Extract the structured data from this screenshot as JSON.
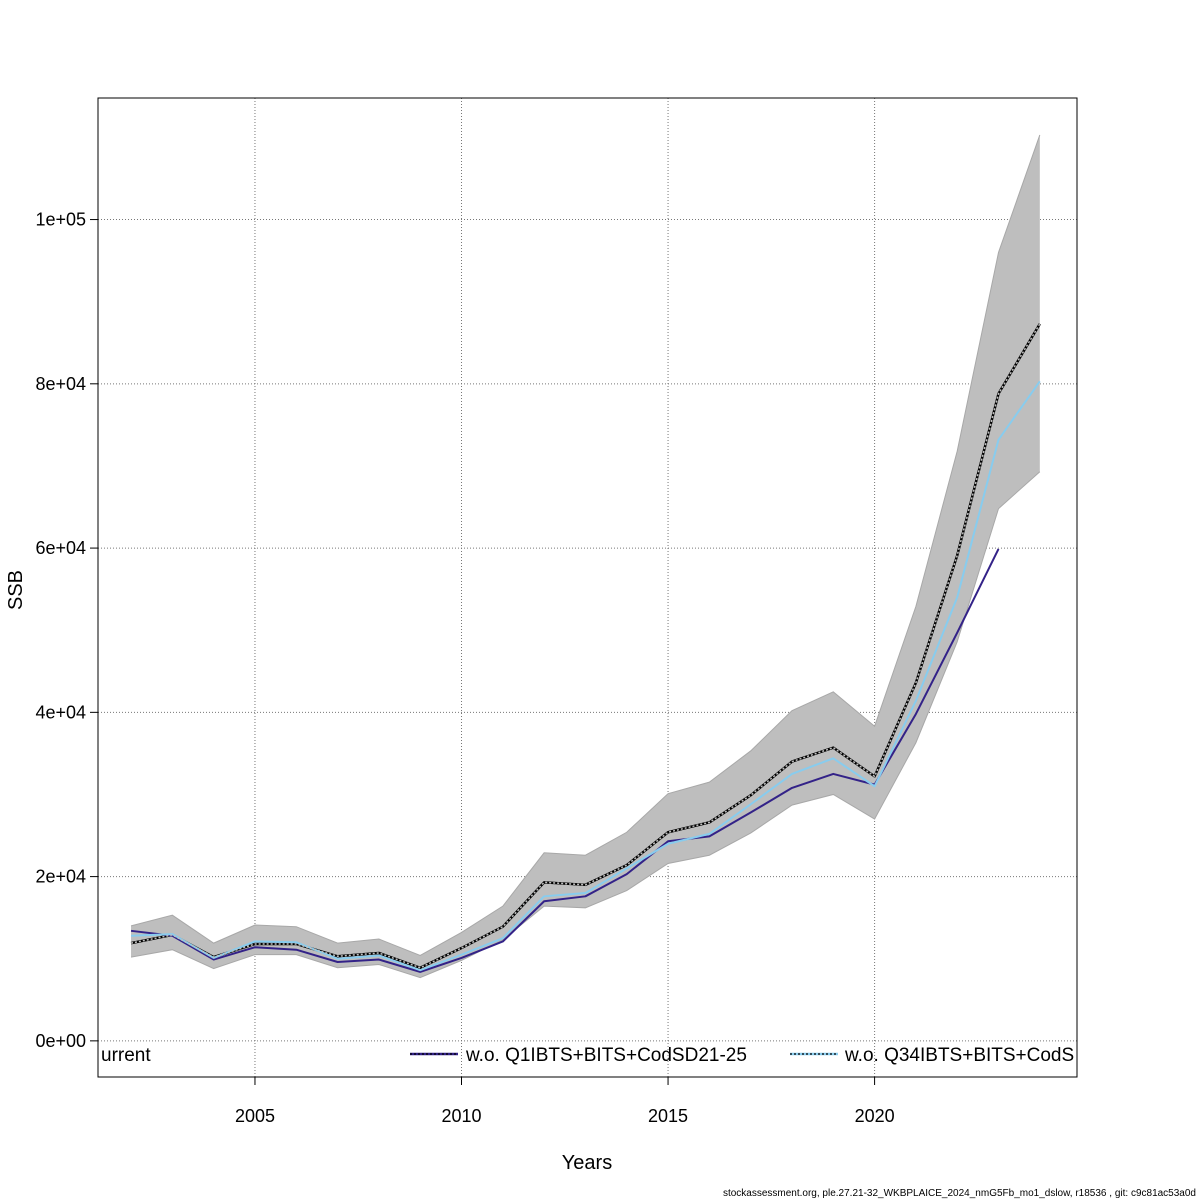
{
  "chart_data": {
    "type": "line",
    "xlabel": "Years",
    "ylabel": "SSB",
    "xlim": [
      2001.2,
      2024.9
    ],
    "ylim": [
      -4400,
      114800
    ],
    "x_ticks": [
      2005,
      2010,
      2015,
      2020
    ],
    "x_tick_labels": [
      "2005",
      "2010",
      "2015",
      "2020"
    ],
    "y_ticks": [
      0,
      20000,
      40000,
      60000,
      80000,
      100000
    ],
    "y_tick_labels": [
      "0e+00",
      "2e+04",
      "4e+04",
      "6e+04",
      "8e+04",
      "1e+05"
    ],
    "grid": true,
    "x": [
      2002,
      2003,
      2004,
      2005,
      2006,
      2007,
      2008,
      2009,
      2010,
      2011,
      2012,
      2013,
      2014,
      2015,
      2016,
      2017,
      2018,
      2019,
      2020,
      2021,
      2022,
      2023,
      2024
    ],
    "band": {
      "color": "#bebebe",
      "upper": [
        14000,
        15300,
        11900,
        14100,
        13900,
        11900,
        12400,
        10400,
        13200,
        16400,
        22900,
        22600,
        25400,
        30100,
        31500,
        35300,
        40200,
        42500,
        38300,
        52900,
        71800,
        96000,
        110300
      ],
      "lower": [
        10200,
        11100,
        8800,
        10500,
        10500,
        8900,
        9300,
        7700,
        9800,
        12300,
        16400,
        16200,
        18300,
        21600,
        22600,
        25300,
        28700,
        30000,
        27000,
        36300,
        48600,
        64800,
        69300
      ]
    },
    "series": [
      {
        "name": "",
        "color": "#000000",
        "style": "solid",
        "values": [
          11900,
          12900,
          10200,
          11800,
          11800,
          10300,
          10700,
          8900,
          11300,
          13900,
          19300,
          19000,
          21400,
          25400,
          26600,
          29900,
          34000,
          35700,
          32200,
          43600,
          59100,
          78800,
          87300
        ]
      },
      {
        "name": "w.o. Q1IBTS+BITS+CodSD21-25",
        "color": "#332288",
        "style": "solid",
        "values": [
          13400,
          12800,
          9900,
          11400,
          11100,
          9600,
          9900,
          8400,
          10100,
          12100,
          17000,
          17600,
          20300,
          24300,
          24900,
          27800,
          30800,
          32500,
          31200,
          39800,
          49700,
          59900,
          null
        ]
      },
      {
        "name": "w.o. Q34IBTS+BITS+CodS",
        "color": "#88ccee",
        "style": "solid",
        "values": [
          12800,
          13000,
          10100,
          12100,
          12000,
          10000,
          10400,
          8600,
          10500,
          12500,
          17600,
          18000,
          21000,
          24000,
          25200,
          28800,
          32500,
          34400,
          31000,
          41400,
          54000,
          73200,
          80300
        ]
      }
    ],
    "legend": {
      "placement": "bottom",
      "entries": [
        "urrent",
        "w.o. Q1IBTS+BITS+CodSD21-25",
        "w.o. Q34IBTS+BITS+CodS"
      ]
    }
  },
  "footer": "stockassessment.org, ple.27.21-32_WKBPLAICE_2024_nmG5Fb_mo1_dslow, r18536 , git: c9c81ac53a0d"
}
